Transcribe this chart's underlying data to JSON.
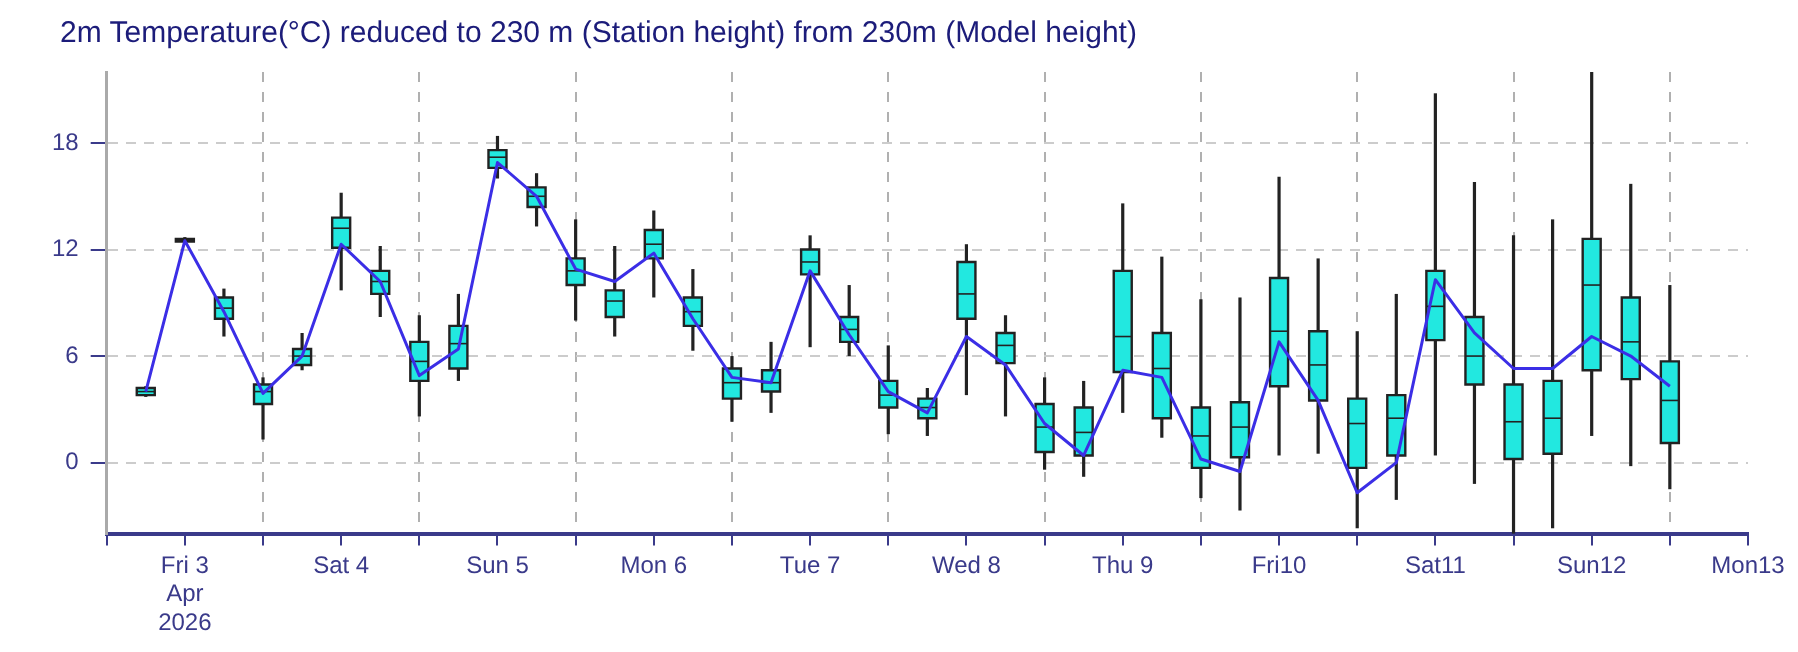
{
  "chart_data": {
    "type": "box",
    "title": "2m Temperature(°C) reduced to 230 m (Station height) from 230m (Model height)",
    "x": [
      "2026-04-03T06:00",
      "2026-04-03T12:00",
      "2026-04-03T18:00",
      "2026-04-04T00:00",
      "2026-04-04T06:00",
      "2026-04-04T12:00",
      "2026-04-04T18:00",
      "2026-04-05T00:00",
      "2026-04-05T06:00",
      "2026-04-05T12:00",
      "2026-04-05T18:00",
      "2026-04-06T00:00",
      "2026-04-06T06:00",
      "2026-04-06T12:00",
      "2026-04-06T18:00",
      "2026-04-07T00:00",
      "2026-04-07T06:00",
      "2026-04-07T12:00",
      "2026-04-07T18:00",
      "2026-04-08T00:00",
      "2026-04-08T06:00",
      "2026-04-08T12:00",
      "2026-04-08T18:00",
      "2026-04-09T00:00",
      "2026-04-09T06:00",
      "2026-04-09T12:00",
      "2026-04-09T18:00",
      "2026-04-10T00:00",
      "2026-04-10T06:00",
      "2026-04-10T12:00",
      "2026-04-10T18:00",
      "2026-04-11T00:00",
      "2026-04-11T06:00",
      "2026-04-11T12:00",
      "2026-04-11T18:00",
      "2026-04-12T00:00",
      "2026-04-12T06:00",
      "2026-04-12T12:00",
      "2026-04-12T18:00",
      "2026-04-13T00:00"
    ],
    "series": [
      {
        "type": "box",
        "color": "#22e8e0",
        "boxes": [
          {
            "low": 3.7,
            "q1": 3.8,
            "median": 4.0,
            "q3": 4.2,
            "high": 4.3
          },
          {
            "low": 12.4,
            "q1": 12.45,
            "median": 12.5,
            "q3": 12.6,
            "high": 12.7
          },
          {
            "low": 7.1,
            "q1": 8.1,
            "median": 8.7,
            "q3": 9.3,
            "high": 9.8
          },
          {
            "low": 1.3,
            "q1": 3.3,
            "median": 4.0,
            "q3": 4.4,
            "high": 4.8
          },
          {
            "low": 5.2,
            "q1": 5.5,
            "median": 6.0,
            "q3": 6.4,
            "high": 7.3
          },
          {
            "low": 9.7,
            "q1": 12.1,
            "median": 13.2,
            "q3": 13.8,
            "high": 15.2
          },
          {
            "low": 8.2,
            "q1": 9.5,
            "median": 10.2,
            "q3": 10.8,
            "high": 12.2
          },
          {
            "low": 2.6,
            "q1": 4.6,
            "median": 5.7,
            "q3": 6.8,
            "high": 8.3
          },
          {
            "low": 4.6,
            "q1": 5.3,
            "median": 6.7,
            "q3": 7.7,
            "high": 9.5
          },
          {
            "low": 16.0,
            "q1": 16.6,
            "median": 17.2,
            "q3": 17.6,
            "high": 18.4
          },
          {
            "low": 13.3,
            "q1": 14.4,
            "median": 15.0,
            "q3": 15.5,
            "high": 16.3
          },
          {
            "low": 8.0,
            "q1": 10.0,
            "median": 10.8,
            "q3": 11.5,
            "high": 13.7
          },
          {
            "low": 7.1,
            "q1": 8.2,
            "median": 9.1,
            "q3": 9.7,
            "high": 12.2
          },
          {
            "low": 9.3,
            "q1": 11.5,
            "median": 12.3,
            "q3": 13.1,
            "high": 14.2
          },
          {
            "low": 6.3,
            "q1": 7.7,
            "median": 8.5,
            "q3": 9.3,
            "high": 10.9
          },
          {
            "low": 2.3,
            "q1": 3.6,
            "median": 4.5,
            "q3": 5.3,
            "high": 6.0
          },
          {
            "low": 2.8,
            "q1": 4.0,
            "median": 4.5,
            "q3": 5.2,
            "high": 6.8
          },
          {
            "low": 6.5,
            "q1": 10.6,
            "median": 11.3,
            "q3": 12.0,
            "high": 12.8
          },
          {
            "low": 6.0,
            "q1": 6.8,
            "median": 7.5,
            "q3": 8.2,
            "high": 10.0
          },
          {
            "low": 1.6,
            "q1": 3.1,
            "median": 3.8,
            "q3": 4.6,
            "high": 6.6
          },
          {
            "low": 1.5,
            "q1": 2.5,
            "median": 3.1,
            "q3": 3.6,
            "high": 4.2
          },
          {
            "low": 3.8,
            "q1": 8.1,
            "median": 9.5,
            "q3": 11.3,
            "high": 12.3
          },
          {
            "low": 2.6,
            "q1": 5.6,
            "median": 6.6,
            "q3": 7.3,
            "high": 8.3
          },
          {
            "low": -0.4,
            "q1": 0.6,
            "median": 2.0,
            "q3": 3.3,
            "high": 4.8
          },
          {
            "low": -0.8,
            "q1": 0.4,
            "median": 1.7,
            "q3": 3.1,
            "high": 4.6
          },
          {
            "low": 2.8,
            "q1": 5.1,
            "median": 7.1,
            "q3": 10.8,
            "high": 14.6
          },
          {
            "low": 1.4,
            "q1": 2.5,
            "median": 5.3,
            "q3": 7.3,
            "high": 11.6
          },
          {
            "low": -2.0,
            "q1": -0.3,
            "median": 1.5,
            "q3": 3.1,
            "high": 9.2
          },
          {
            "low": -2.7,
            "q1": 0.3,
            "median": 2.0,
            "q3": 3.4,
            "high": 9.3
          },
          {
            "low": 0.4,
            "q1": 4.3,
            "median": 7.4,
            "q3": 10.4,
            "high": 16.1
          },
          {
            "low": 0.5,
            "q1": 3.5,
            "median": 5.5,
            "q3": 7.4,
            "high": 11.5
          },
          {
            "low": -3.7,
            "q1": -0.3,
            "median": 2.2,
            "q3": 3.6,
            "high": 7.4
          },
          {
            "low": -2.1,
            "q1": 0.4,
            "median": 2.5,
            "q3": 3.8,
            "high": 9.5
          },
          {
            "low": 0.4,
            "q1": 6.9,
            "median": 8.8,
            "q3": 10.8,
            "high": 20.8
          },
          {
            "low": -1.2,
            "q1": 4.4,
            "median": 6.0,
            "q3": 8.2,
            "high": 15.8
          },
          {
            "low": -4.0,
            "q1": 0.2,
            "median": 2.3,
            "q3": 4.4,
            "high": 12.8
          },
          {
            "low": -3.7,
            "q1": 0.5,
            "median": 2.5,
            "q3": 4.6,
            "high": 13.7
          },
          {
            "low": 1.5,
            "q1": 5.2,
            "median": 10.0,
            "q3": 12.6,
            "high": 22.0
          },
          {
            "low": -0.2,
            "q1": 4.7,
            "median": 6.8,
            "q3": 9.3,
            "high": 15.7
          },
          {
            "low": -1.5,
            "q1": 1.1,
            "median": 3.5,
            "q3": 5.7,
            "high": 10.0
          }
        ]
      },
      {
        "type": "line",
        "color": "#3b2ee6",
        "values": [
          4.0,
          12.5,
          8.5,
          3.9,
          6.0,
          12.3,
          10.2,
          4.9,
          6.4,
          16.9,
          15.0,
          10.9,
          10.2,
          11.8,
          8.1,
          4.8,
          4.5,
          10.8,
          7.2,
          4.0,
          2.8,
          7.1,
          5.5,
          2.2,
          0.4,
          5.2,
          4.8,
          0.2,
          -0.5,
          6.8,
          3.5,
          -1.7,
          0.0,
          10.3,
          7.3,
          5.3,
          5.3,
          7.1,
          6.0,
          4.3
        ]
      }
    ],
    "xlim": [
      "2026-04-03T00:00",
      "2026-04-13T12:00"
    ],
    "xticks": [
      {
        "value": "2026-04-03T00:00",
        "label": null
      },
      {
        "value": "2026-04-03T12:00",
        "label": "Fri 3\nApr\n2026"
      },
      {
        "value": "2026-04-04T00:00",
        "label": null
      },
      {
        "value": "2026-04-04T12:00",
        "label": "Sat 4"
      },
      {
        "value": "2026-04-05T00:00",
        "label": null
      },
      {
        "value": "2026-04-05T12:00",
        "label": "Sun 5"
      },
      {
        "value": "2026-04-06T00:00",
        "label": null
      },
      {
        "value": "2026-04-06T12:00",
        "label": "Mon 6"
      },
      {
        "value": "2026-04-07T00:00",
        "label": null
      },
      {
        "value": "2026-04-07T12:00",
        "label": "Tue 7"
      },
      {
        "value": "2026-04-08T00:00",
        "label": null
      },
      {
        "value": "2026-04-08T12:00",
        "label": "Wed 8"
      },
      {
        "value": "2026-04-09T00:00",
        "label": null
      },
      {
        "value": "2026-04-09T12:00",
        "label": "Thu 9"
      },
      {
        "value": "2026-04-10T00:00",
        "label": null
      },
      {
        "value": "2026-04-10T12:00",
        "label": "Fri10"
      },
      {
        "value": "2026-04-11T00:00",
        "label": null
      },
      {
        "value": "2026-04-11T12:00",
        "label": "Sat11"
      },
      {
        "value": "2026-04-12T00:00",
        "label": null
      },
      {
        "value": "2026-04-12T12:00",
        "label": "Sun12"
      },
      {
        "value": "2026-04-13T00:00",
        "label": null
      },
      {
        "value": "2026-04-13T12:00",
        "label": "Mon13"
      }
    ],
    "ylim": [
      -4,
      22
    ],
    "yticks": [
      0,
      6,
      12,
      18
    ],
    "grid": true,
    "legend": false,
    "marker": "none"
  }
}
